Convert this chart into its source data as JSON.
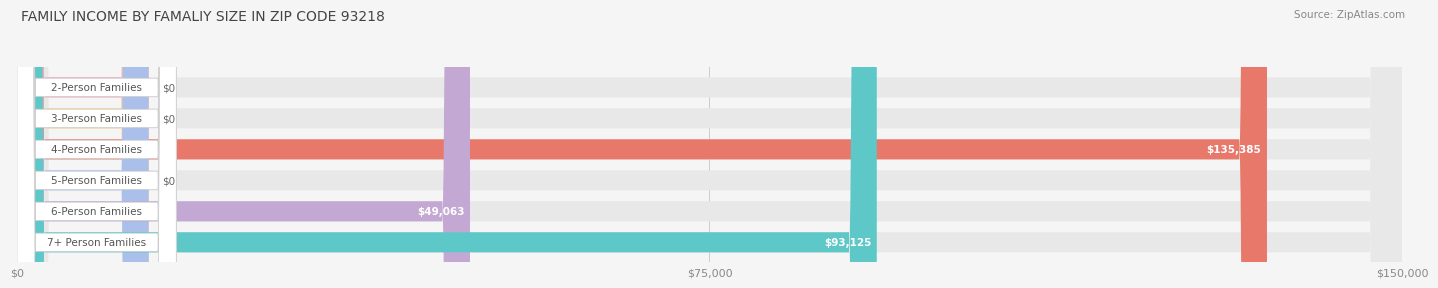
{
  "title": "FAMILY INCOME BY FAMALIY SIZE IN ZIP CODE 93218",
  "source": "Source: ZipAtlas.com",
  "categories": [
    "2-Person Families",
    "3-Person Families",
    "4-Person Families",
    "5-Person Families",
    "6-Person Families",
    "7+ Person Families"
  ],
  "values": [
    0,
    0,
    135385,
    0,
    49063,
    93125
  ],
  "bar_colors": [
    "#f4a0b5",
    "#f5c98a",
    "#e8786a",
    "#aabfea",
    "#c4a8d4",
    "#5ec8c8"
  ],
  "value_labels": [
    "$0",
    "$0",
    "$135,385",
    "$0",
    "$49,063",
    "$93,125"
  ],
  "xlim": [
    0,
    150000
  ],
  "xticks": [
    0,
    75000,
    150000
  ],
  "xtick_labels": [
    "$0",
    "$75,000",
    "$150,000"
  ],
  "background_color": "#f5f5f5",
  "title_fontsize": 10,
  "source_fontsize": 7.5,
  "label_fontsize": 7.5,
  "value_fontsize": 7.5,
  "bar_height": 0.65,
  "fig_width": 14.06,
  "fig_height": 3.05
}
